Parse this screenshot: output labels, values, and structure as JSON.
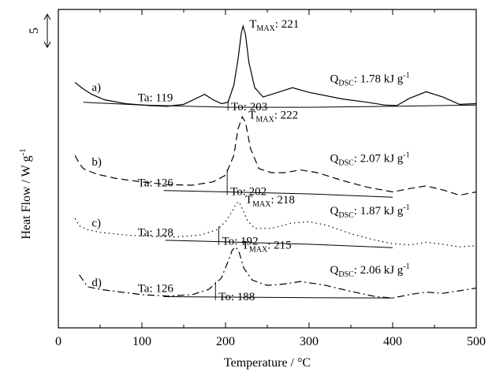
{
  "chart_data": {
    "type": "line",
    "title": "",
    "xlabel": "Temperature / °C",
    "ylabel": "Heat Flow / W g",
    "ylabel_superscript": "-1",
    "xlim": [
      0,
      500
    ],
    "xticks": [
      "0",
      "100",
      "200",
      "300",
      "400",
      "500"
    ],
    "grid": false,
    "legend": "none",
    "scale_bar": {
      "label": "5",
      "value": 5
    },
    "series": [
      {
        "label": "a)",
        "dash": "solid",
        "points": [
          [
            20,
            1.0
          ],
          [
            30,
            0.0
          ],
          [
            40,
            -0.8
          ],
          [
            55,
            -1.6
          ],
          [
            80,
            -2.2
          ],
          [
            110,
            -2.5
          ],
          [
            130,
            -2.6
          ],
          [
            150,
            -2.3
          ],
          [
            165,
            -1.4
          ],
          [
            175,
            -0.8
          ],
          [
            185,
            -1.6
          ],
          [
            195,
            -2.2
          ],
          [
            203,
            -2.0
          ],
          [
            210,
            0.6
          ],
          [
            215,
            4.5
          ],
          [
            219,
            8.5
          ],
          [
            221,
            9.5
          ],
          [
            224,
            8.2
          ],
          [
            228,
            4.0
          ],
          [
            235,
            0.2
          ],
          [
            245,
            -1.2
          ],
          [
            260,
            -0.6
          ],
          [
            280,
            0.2
          ],
          [
            300,
            -0.5
          ],
          [
            340,
            -1.5
          ],
          [
            370,
            -2.0
          ],
          [
            390,
            -2.4
          ],
          [
            405,
            -2.5
          ],
          [
            420,
            -1.4
          ],
          [
            440,
            -0.4
          ],
          [
            460,
            -1.2
          ],
          [
            480,
            -2.3
          ],
          [
            500,
            -2.2
          ]
        ],
        "baseline": [
          [
            30,
            -2.0
          ],
          [
            100,
            -2.4
          ],
          [
            203,
            -2.75
          ],
          [
            300,
            -2.75
          ],
          [
            400,
            -2.6
          ],
          [
            500,
            -2.4
          ]
        ],
        "ta_label": "Ta: 119",
        "to_label": "To: 203",
        "tmax_label": "221",
        "qdsc_label": "1.78 kJ g"
      },
      {
        "label": "b)",
        "dash": "dashed",
        "points": [
          [
            20,
            -10.0
          ],
          [
            25,
            -11.2
          ],
          [
            30,
            -12.0
          ],
          [
            45,
            -12.8
          ],
          [
            70,
            -13.5
          ],
          [
            100,
            -14.0
          ],
          [
            130,
            -14.4
          ],
          [
            160,
            -14.5
          ],
          [
            185,
            -14.0
          ],
          [
            200,
            -13.0
          ],
          [
            210,
            -10.0
          ],
          [
            215,
            -6.0
          ],
          [
            220,
            -4.2
          ],
          [
            224,
            -5.0
          ],
          [
            230,
            -9.0
          ],
          [
            240,
            -12.0
          ],
          [
            255,
            -12.6
          ],
          [
            270,
            -12.6
          ],
          [
            290,
            -12.2
          ],
          [
            310,
            -12.6
          ],
          [
            340,
            -13.8
          ],
          [
            370,
            -14.8
          ],
          [
            400,
            -15.5
          ],
          [
            420,
            -15.0
          ],
          [
            440,
            -14.6
          ],
          [
            460,
            -15.2
          ],
          [
            480,
            -16.0
          ],
          [
            500,
            -15.5
          ]
        ],
        "baseline": [
          [
            126,
            -15.3
          ],
          [
            202,
            -15.5
          ],
          [
            300,
            -15.8
          ],
          [
            400,
            -16.3
          ]
        ],
        "ta_label": "Ta: 126",
        "to_label": "To: 202",
        "tmax_label": "222",
        "qdsc_label": "2.07 kJ g"
      },
      {
        "label": "c)",
        "dash": "dotted",
        "points": [
          [
            20,
            -19.5
          ],
          [
            25,
            -20.6
          ],
          [
            35,
            -21.2
          ],
          [
            50,
            -21.6
          ],
          [
            80,
            -22.0
          ],
          [
            110,
            -22.2
          ],
          [
            140,
            -22.3
          ],
          [
            170,
            -22.0
          ],
          [
            190,
            -21.2
          ],
          [
            200,
            -20.0
          ],
          [
            208,
            -18.4
          ],
          [
            213,
            -17.2
          ],
          [
            216,
            -17.0
          ],
          [
            220,
            -18.0
          ],
          [
            226,
            -19.8
          ],
          [
            235,
            -21.0
          ],
          [
            255,
            -21.0
          ],
          [
            280,
            -20.2
          ],
          [
            300,
            -20.0
          ],
          [
            320,
            -20.5
          ],
          [
            350,
            -21.8
          ],
          [
            380,
            -22.8
          ],
          [
            400,
            -23.3
          ],
          [
            420,
            -23.5
          ],
          [
            440,
            -23.1
          ],
          [
            460,
            -23.4
          ],
          [
            480,
            -23.8
          ],
          [
            500,
            -23.6
          ]
        ],
        "baseline": [
          [
            128,
            -22.8
          ],
          [
            192,
            -23.0
          ],
          [
            300,
            -23.4
          ],
          [
            400,
            -23.9
          ]
        ],
        "ta_label": "Ta: 128",
        "to_label": "To: 192",
        "tmax_label": "218",
        "qdsc_label": "1.87 kJ g"
      },
      {
        "label": "d)",
        "dash": "dashdot",
        "points": [
          [
            25,
            -28.0
          ],
          [
            35,
            -29.8
          ],
          [
            50,
            -30.2
          ],
          [
            75,
            -30.6
          ],
          [
            100,
            -31.0
          ],
          [
            130,
            -31.2
          ],
          [
            160,
            -31.0
          ],
          [
            180,
            -30.2
          ],
          [
            195,
            -28.5
          ],
          [
            203,
            -26.0
          ],
          [
            208,
            -24.3
          ],
          [
            212,
            -23.8
          ],
          [
            216,
            -24.5
          ],
          [
            222,
            -27.0
          ],
          [
            232,
            -28.8
          ],
          [
            250,
            -29.6
          ],
          [
            270,
            -29.4
          ],
          [
            290,
            -29.0
          ],
          [
            320,
            -29.6
          ],
          [
            350,
            -30.5
          ],
          [
            380,
            -31.3
          ],
          [
            400,
            -31.5
          ],
          [
            420,
            -31.0
          ],
          [
            440,
            -30.6
          ],
          [
            460,
            -30.8
          ],
          [
            480,
            -30.4
          ],
          [
            500,
            -30.0
          ]
        ],
        "baseline": [
          [
            126,
            -31.3
          ],
          [
            188,
            -31.35
          ],
          [
            300,
            -31.45
          ],
          [
            400,
            -31.5
          ]
        ],
        "ta_label": "Ta: 126",
        "to_label": "To: 188",
        "tmax_label": "215",
        "qdsc_label": "2.06 kJ g"
      }
    ],
    "annotation_parts": {
      "tmax_main": "T",
      "tmax_sub": "MAX",
      "tmax_sep": ": ",
      "qdsc_main": "Q",
      "qdsc_sub": "DSC",
      "qdsc_sep": ": ",
      "unit_superscript": "-1"
    }
  }
}
